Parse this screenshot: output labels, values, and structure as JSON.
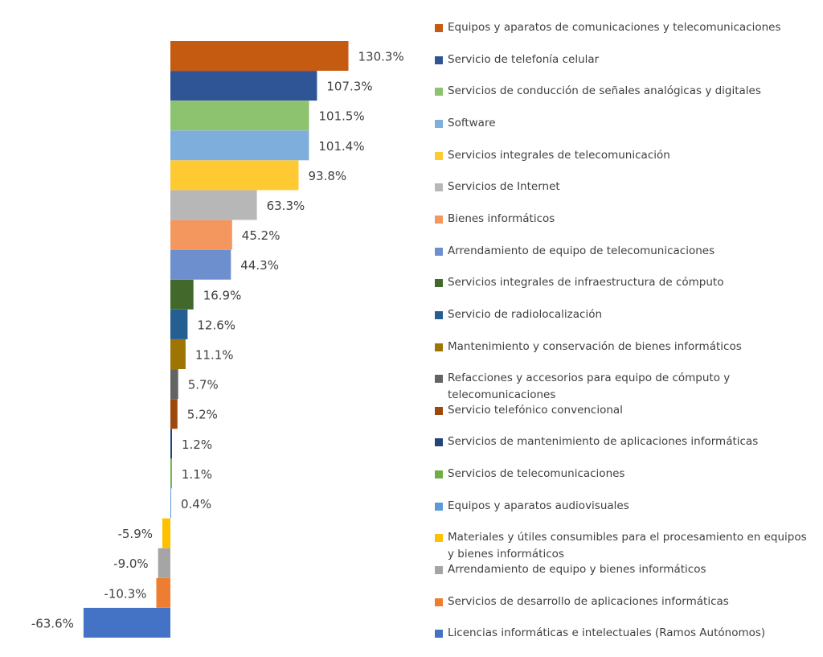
{
  "chart_data": {
    "type": "bar",
    "orientation": "horizontal",
    "value_suffix": "%",
    "categories": [
      "Equipos y aparatos de comunicaciones y telecomunicaciones",
      "Servicio de telefonía celular",
      "Servicios de conducción de señales analógicas y digitales",
      "Software",
      "Servicios integrales de telecomunicación",
      "Servicios de Internet",
      "Bienes informáticos",
      "Arrendamiento de equipo de telecomunicaciones",
      "Servicios integrales de infraestructura de cómputo",
      "Servicio de radiolocalización",
      "Mantenimiento y conservación de bienes informáticos",
      "Refacciones y accesorios para equipo de cómputo y telecomunicaciones",
      "Servicio telefónico convencional",
      "Servicios de mantenimiento de aplicaciones informáticas",
      "Servicios de telecomunicaciones",
      "Equipos y aparatos audiovisuales",
      "Materiales y útiles consumibles para el procesamiento en equipos y bienes informáticos",
      "Arrendamiento de equipo y bienes informáticos",
      "Servicios de desarrollo de aplicaciones informáticas",
      "Licencias informáticas e intelectuales (Ramos Autónomos)"
    ],
    "values": [
      130.3,
      107.3,
      101.5,
      101.4,
      93.8,
      63.3,
      45.2,
      44.3,
      16.9,
      12.6,
      11.1,
      5.7,
      5.2,
      1.2,
      1.1,
      0.4,
      -5.9,
      -9.0,
      -10.3,
      -63.6
    ],
    "labels": [
      "130.3%",
      "107.3%",
      "101.5%",
      "101.4%",
      "93.8%",
      "63.3%",
      "45.2%",
      "44.3%",
      "16.9%",
      "12.6%",
      "11.1%",
      "5.7%",
      "5.2%",
      "1.2%",
      "1.1%",
      "0.4%",
      "-5.9%",
      "-9.0%",
      "-10.3%",
      "-63.6%"
    ],
    "colors": [
      "#C55A11",
      "#2F5597",
      "#8DC26F",
      "#7EAEDB",
      "#FFC931",
      "#B7B7B7",
      "#F4975E",
      "#6E8FCE",
      "#43682B",
      "#255E91",
      "#9E7502",
      "#636363",
      "#9E480E",
      "#264478",
      "#70AD47",
      "#5B9BD5",
      "#FFC000",
      "#A5A5A5",
      "#ED7D31",
      "#4472C4"
    ],
    "legend_position": "right",
    "grid": false,
    "axes_visible": false
  }
}
